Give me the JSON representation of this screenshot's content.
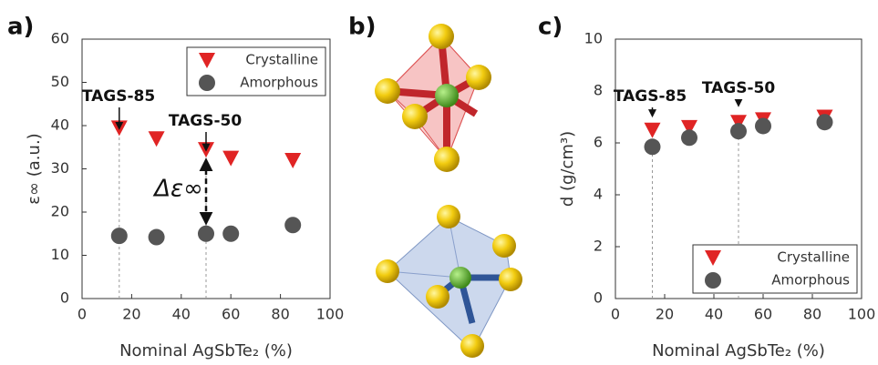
{
  "panel_labels": [
    "a)",
    "b)",
    "c)"
  ],
  "chart_data": [
    {
      "type": "scatter",
      "ylabel": "ε∞ (a.u.)",
      "xlabel": "Nominal AgSbTe₂ (%)",
      "xlim": [
        0,
        100
      ],
      "xticks": [
        0,
        20,
        40,
        60,
        80,
        100
      ],
      "ylim": [
        0,
        60
      ],
      "yticks": [
        0,
        10,
        20,
        30,
        40,
        50,
        60
      ],
      "legend": "upper right",
      "annotations": [
        "TAGS-85",
        "TAGS-50",
        "Δε∞"
      ],
      "series": [
        {
          "name": "Crystalline",
          "color": "#e02424",
          "marker": "triangle-down",
          "x": [
            15,
            30,
            50,
            60,
            85
          ],
          "values": [
            39.5,
            37,
            34.5,
            32.5,
            32
          ]
        },
        {
          "name": "Amorphous",
          "color": "#555555",
          "marker": "circle",
          "x": [
            15,
            30,
            50,
            60,
            85
          ],
          "values": [
            14.5,
            14.2,
            15,
            15,
            17
          ]
        }
      ]
    },
    {
      "type": "scatter",
      "ylabel": "d (g/cm³)",
      "xlabel": "Nominal AgSbTe₂ (%)",
      "xlim": [
        0,
        100
      ],
      "xticks": [
        0,
        20,
        40,
        60,
        80,
        100
      ],
      "ylim": [
        0,
        10
      ],
      "yticks": [
        0,
        2,
        4,
        6,
        8,
        10
      ],
      "legend": "lower right",
      "annotations": [
        "TAGS-85",
        "TAGS-50"
      ],
      "series": [
        {
          "name": "Crystalline",
          "color": "#e02424",
          "marker": "triangle-down",
          "x": [
            15,
            30,
            50,
            60,
            85
          ],
          "values": [
            6.5,
            6.6,
            6.8,
            6.9,
            7.0
          ]
        },
        {
          "name": "Amorphous",
          "color": "#555555",
          "marker": "circle",
          "x": [
            15,
            30,
            50,
            60,
            85
          ],
          "values": [
            5.85,
            6.2,
            6.45,
            6.65,
            6.8
          ]
        }
      ]
    }
  ]
}
